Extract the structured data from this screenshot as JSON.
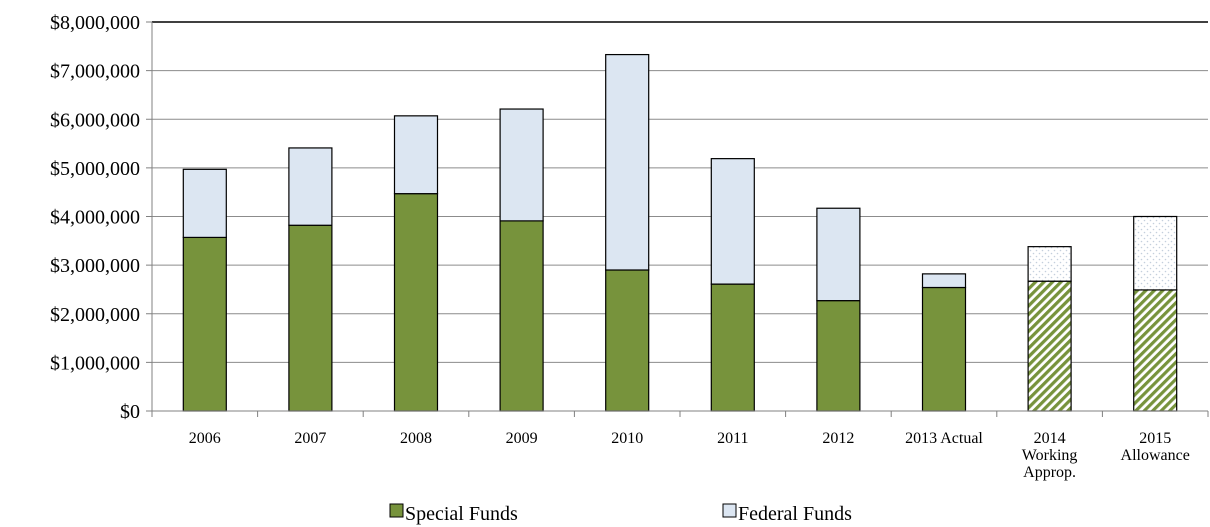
{
  "chart_data": {
    "type": "bar",
    "stacked": true,
    "title": "",
    "xlabel": "",
    "ylabel": "",
    "ylim": [
      0,
      8000000
    ],
    "yticks": [
      0,
      1000000,
      2000000,
      3000000,
      4000000,
      5000000,
      6000000,
      7000000,
      8000000
    ],
    "ytick_labels": [
      "$0",
      "$1,000,000",
      "$2,000,000",
      "$3,000,000",
      "$4,000,000",
      "$5,000,000",
      "$6,000,000",
      "$7,000,000",
      "$8,000,000"
    ],
    "grid": true,
    "legend_position": "bottom",
    "categories": [
      [
        "2006"
      ],
      [
        "2007"
      ],
      [
        "2008"
      ],
      [
        "2009"
      ],
      [
        "2010"
      ],
      [
        "2011"
      ],
      [
        "2012"
      ],
      [
        "2013 Actual"
      ],
      [
        "2014",
        "Working",
        "Approp."
      ],
      [
        "2015",
        "Allowance"
      ]
    ],
    "projected_from_index": 8,
    "series": [
      {
        "name": "Special Funds",
        "color": "#77933c",
        "values": [
          3570000,
          3820000,
          4470000,
          3910000,
          2900000,
          2610000,
          2270000,
          2540000,
          2670000,
          2490000
        ]
      },
      {
        "name": "Federal Funds",
        "color": "#dce6f2",
        "values": [
          1400000,
          1590000,
          1600000,
          2300000,
          4430000,
          2580000,
          1900000,
          280000,
          710000,
          1510000
        ]
      }
    ]
  }
}
